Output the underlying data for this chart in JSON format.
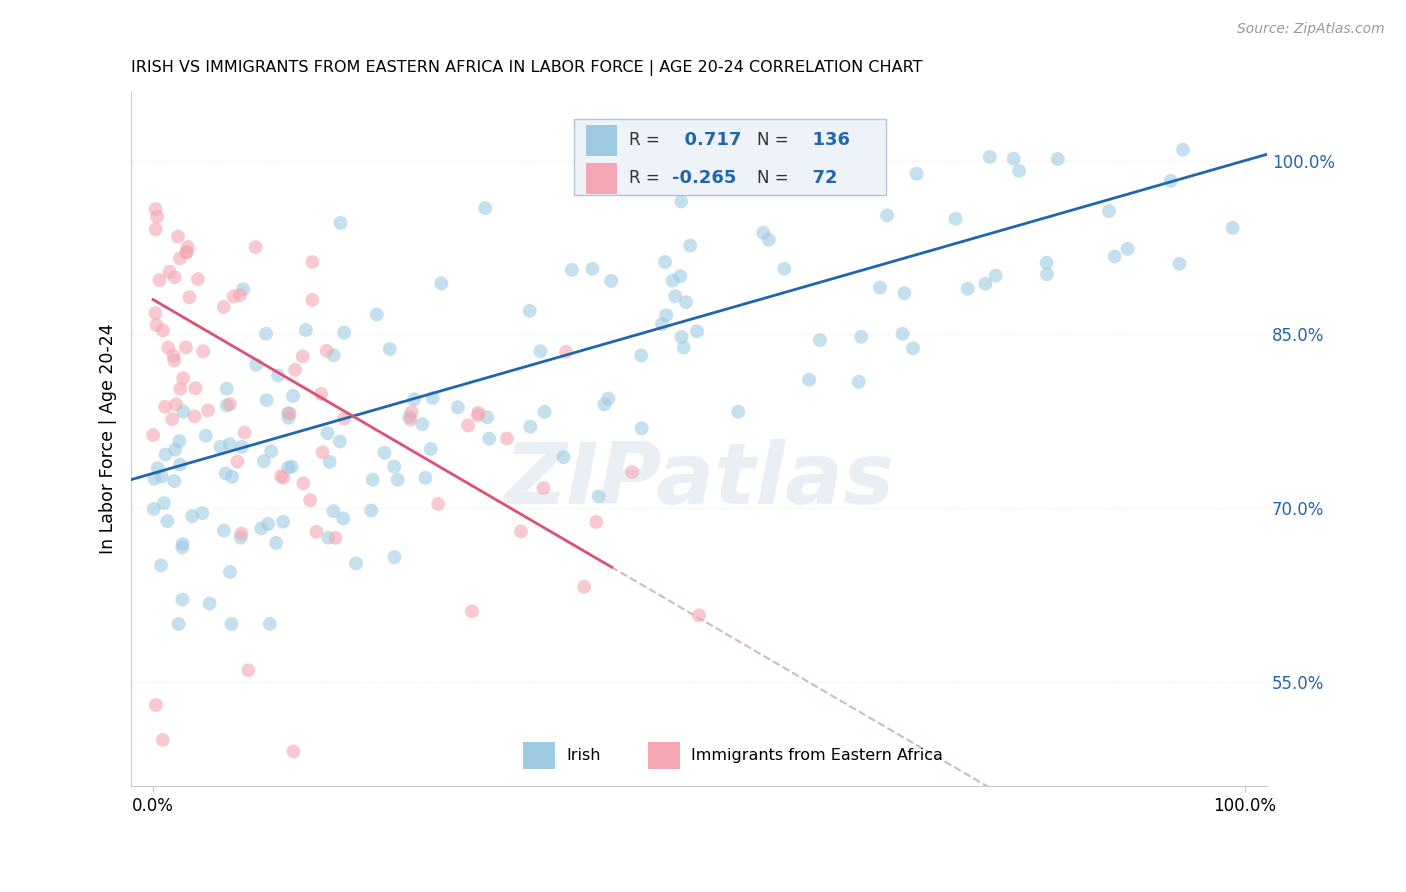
{
  "title": "IRISH VS IMMIGRANTS FROM EASTERN AFRICA IN LABOR FORCE | AGE 20-24 CORRELATION CHART",
  "source": "Source: ZipAtlas.com",
  "ylabel": "In Labor Force | Age 20-24",
  "xlim": [
    -0.02,
    1.02
  ],
  "ylim": [
    0.46,
    1.06
  ],
  "yticks": [
    0.55,
    0.7,
    0.85,
    1.0
  ],
  "ytick_labels": [
    "55.0%",
    "70.0%",
    "85.0%",
    "100.0%"
  ],
  "xtick_labels": [
    "0.0%",
    "100.0%"
  ],
  "blue_R": 0.717,
  "blue_N": 136,
  "pink_R": -0.265,
  "pink_N": 72,
  "blue_color": "#9ecae1",
  "pink_color": "#f4a6b2",
  "blue_line_color": "#2166ac",
  "pink_line_color": "#e05070",
  "dashed_line_color": "#d4b8c0",
  "legend_label_blue": "Irish",
  "legend_label_pink": "Immigrants from Eastern Africa",
  "watermark": "ZIPatlas",
  "background_color": "#ffffff",
  "grid_color": "#e8e8e8",
  "title_fontsize": 12,
  "axis_label_color": "#2166ac",
  "tick_label_color": "#2166ac"
}
